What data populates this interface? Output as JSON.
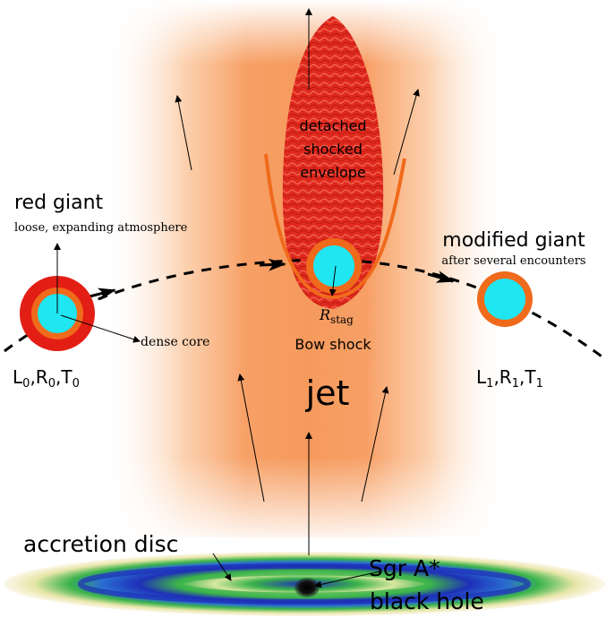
{
  "labels": {
    "red_giant": "red giant",
    "red_giant_sub": "loose, expanding atmosphere",
    "dense_core": "dense core",
    "l0_L": "L",
    "l0_sub0": "0",
    "l0_R": ",R",
    "l0_sub1": "0",
    "l0_T": ",T",
    "l0_sub2": "0",
    "l1_L": "L",
    "l1_sub0": "1",
    "l1_R": ",R",
    "l1_sub1": "1",
    "l1_T": ",T",
    "l1_sub2": "1",
    "detached_1": "detached",
    "detached_2": "shocked",
    "detached_3": "envelope",
    "rstag_R": "R",
    "rstag_sub": "stag",
    "bow_shock": "Bow shock",
    "modified_giant": "modified giant",
    "modified_giant_sub": "after several encounters",
    "jet": "jet",
    "accretion_disc": "accretion disc",
    "sgr_a": "Sgr A*",
    "black_hole": "black hole"
  },
  "colors": {
    "jet_orange": "#f7a36a",
    "envelope_red": "#e0261c",
    "bow_shock_orange": "#f06a1c",
    "core_cyan": "#1fe6f0",
    "disc_blue": "#1e2fb8",
    "disc_green": "#3cb44a",
    "disc_cream": "#f3e6b4",
    "black_hole": "#000000"
  }
}
